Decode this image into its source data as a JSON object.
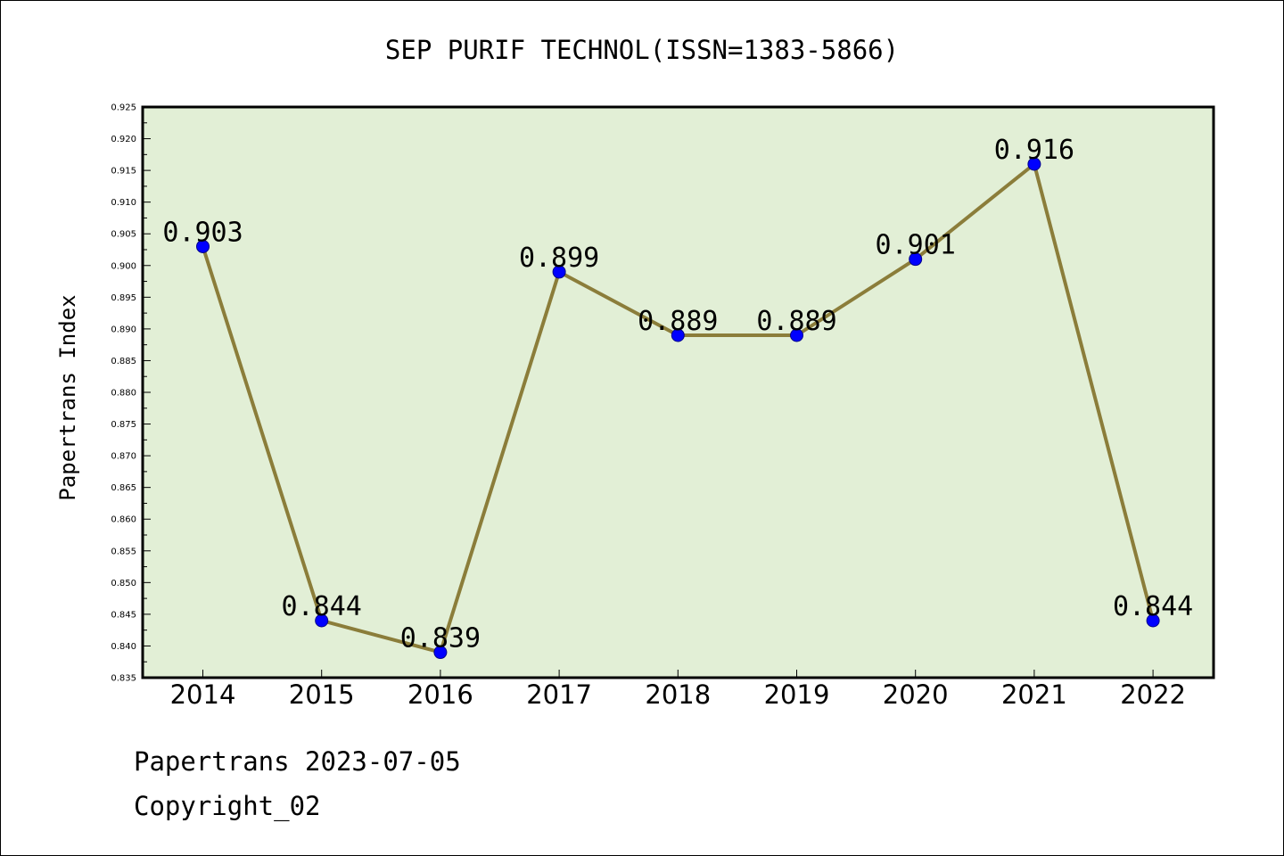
{
  "chart_data": {
    "type": "line",
    "title": "SEP PURIF TECHNOL(ISSN=1383-5866)",
    "xlabel": "",
    "ylabel": "Papertrans Index",
    "categories": [
      "2014",
      "2015",
      "2016",
      "2017",
      "2018",
      "2019",
      "2020",
      "2021",
      "2022"
    ],
    "values": [
      0.903,
      0.844,
      0.839,
      0.899,
      0.889,
      0.889,
      0.901,
      0.916,
      0.844
    ],
    "data_labels": [
      "0.903",
      "0.844",
      "0.839",
      "0.899",
      "0.889",
      "0.889",
      "0.901",
      "0.916",
      "0.844"
    ],
    "ylim": [
      0.835,
      0.925
    ],
    "yticks": [
      "0.835",
      "0.840",
      "0.845",
      "0.850",
      "0.855",
      "0.860",
      "0.865",
      "0.870",
      "0.875",
      "0.880",
      "0.885",
      "0.890",
      "0.895",
      "0.900",
      "0.905",
      "0.910",
      "0.915",
      "0.920",
      "0.925"
    ],
    "grid": false,
    "colors": {
      "plot_background": "#e2efd6",
      "line": "#8b7d3a",
      "marker": "#0000ff"
    }
  },
  "footer": {
    "line1": "Papertrans 2023-07-05",
    "line2": "Copyright_02"
  }
}
